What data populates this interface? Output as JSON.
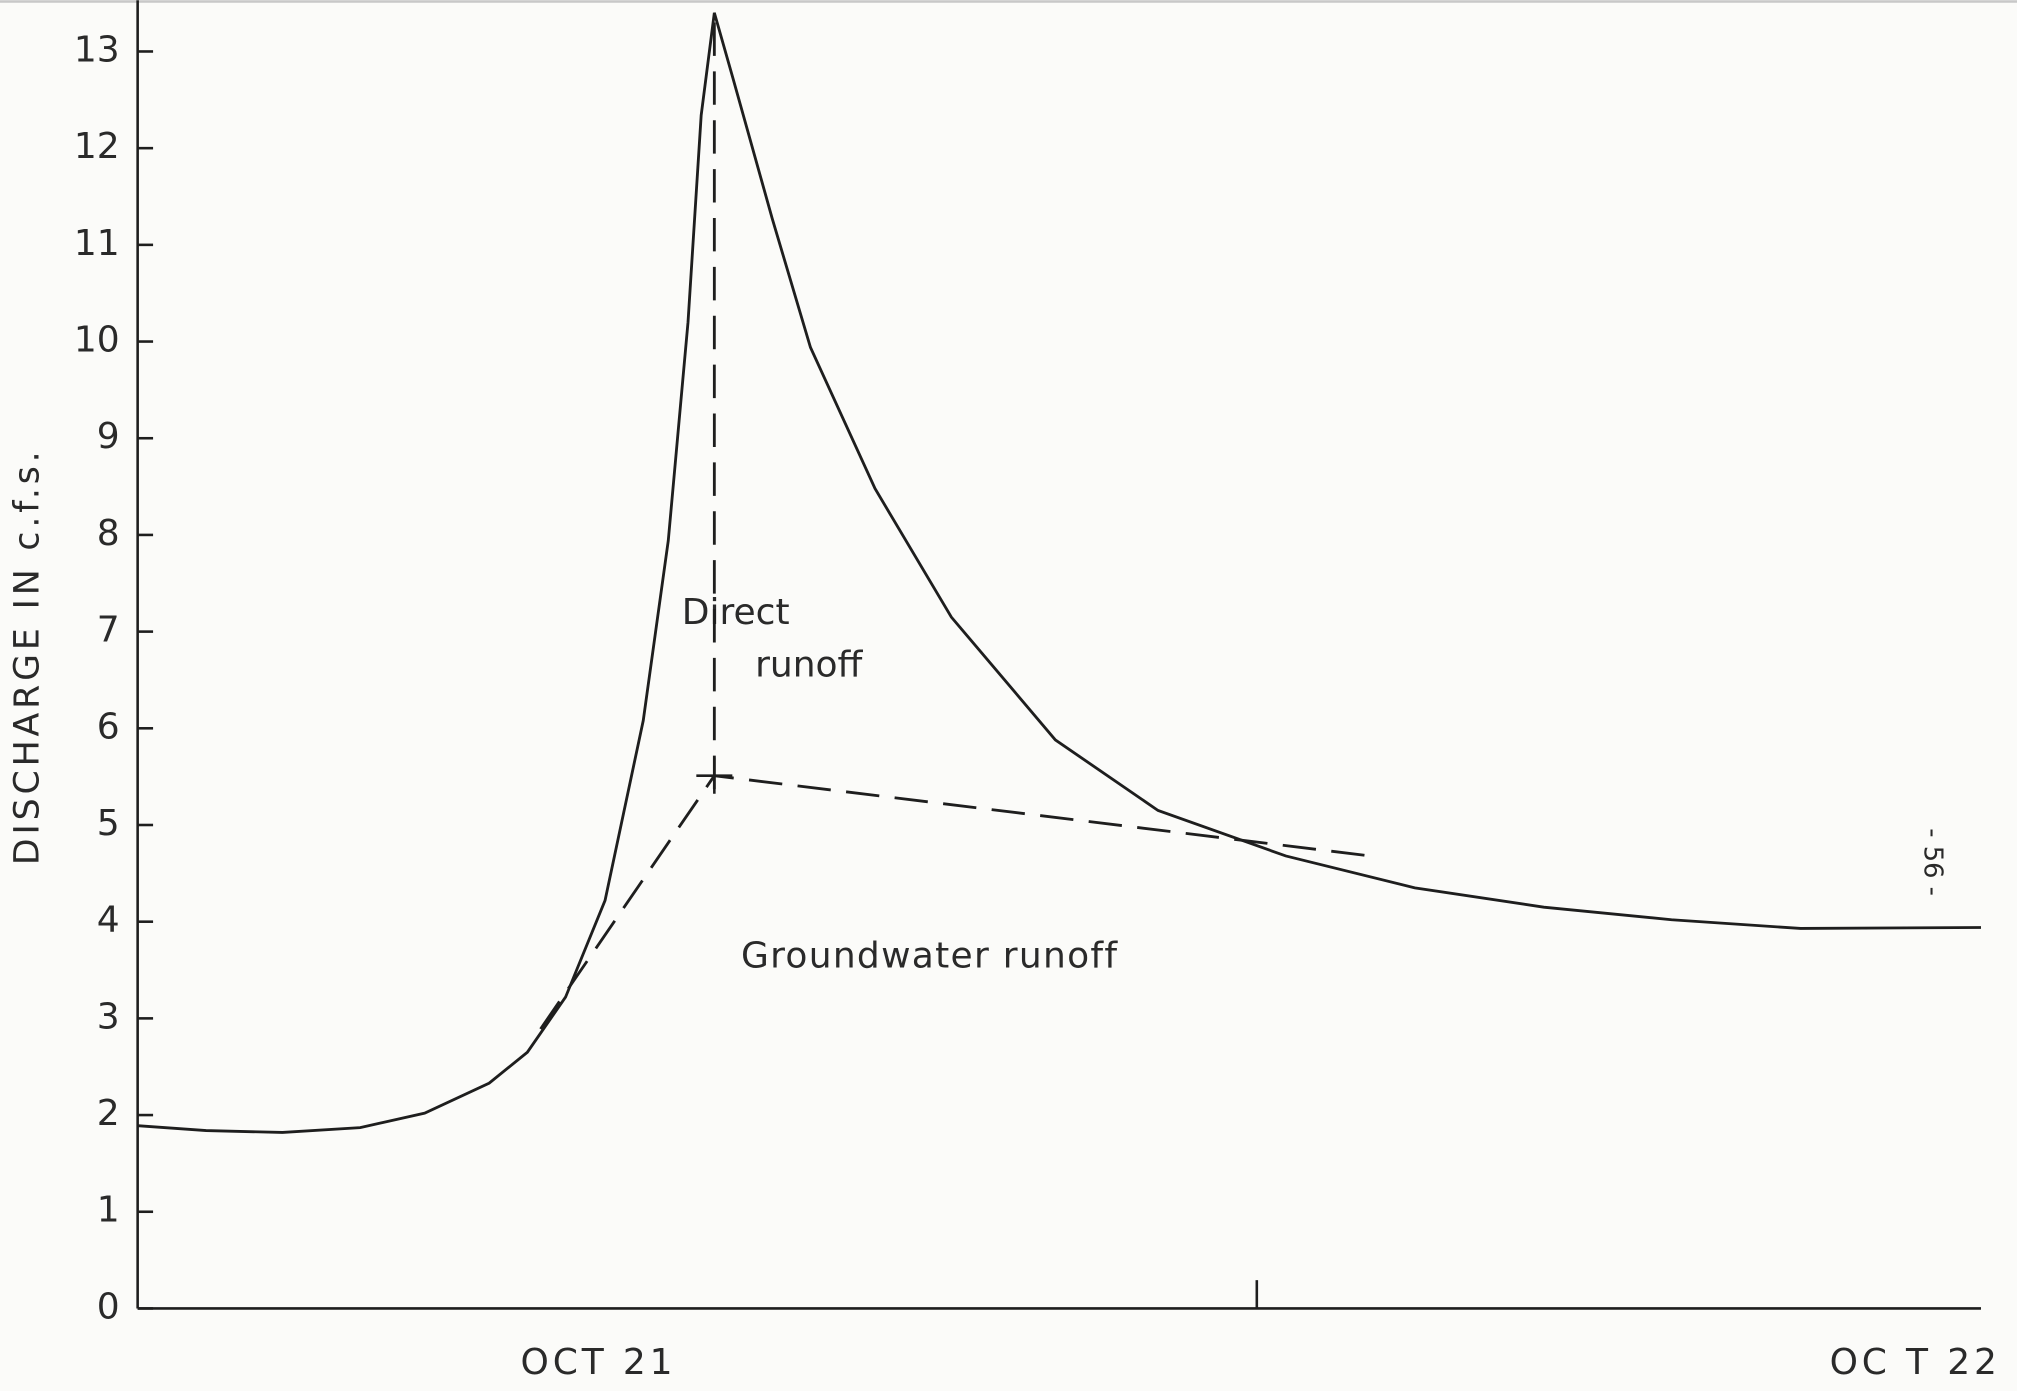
{
  "chart_data": {
    "type": "line",
    "ylabel": "DISCHARGE   IN   c.f.s.",
    "annotations": [
      "Direct",
      "runoff",
      "Groundwater runoff",
      "- 56 -"
    ],
    "x": [
      20.65,
      20.702,
      20.76,
      20.819,
      20.868,
      20.917,
      20.946,
      20.975,
      21.005,
      21.034,
      21.053,
      21.068,
      21.078,
      21.088,
      21.102,
      21.132,
      21.161,
      21.21,
      21.268,
      21.347,
      21.425,
      21.522,
      21.62,
      21.718,
      21.815,
      21.913,
      22.05
    ],
    "series": [
      {
        "color": "#1e1e1e",
        "values": [
          1.89,
          1.84,
          1.82,
          1.87,
          2.02,
          2.33,
          2.65,
          3.22,
          4.22,
          6.08,
          7.94,
          10.2,
          12.34,
          13.4,
          12.73,
          11.27,
          9.94,
          8.48,
          7.15,
          5.88,
          5.15,
          4.68,
          4.35,
          4.15,
          4.02,
          3.93,
          3.94
        ]
      },
      {
        "color": "#1e1e1e",
        "dash": true,
        "x": [
          20.956,
          21.088,
          21.586
        ],
        "values": [
          2.89,
          5.51,
          4.68
        ]
      },
      {
        "color": "#1e1e1e",
        "dash": true,
        "x": [
          21.088,
          21.088
        ],
        "values": [
          13.3,
          5.28
        ]
      }
    ],
    "xlim": [
      20.65,
      22.05
    ],
    "xticks": [
      {
        "value": 21,
        "label": "OCT  21"
      },
      {
        "value": 22,
        "label": "OC T   22"
      }
    ],
    "xticks_minor": [
      21.5
    ],
    "ylim": [
      0,
      13.53
    ],
    "yticks": [
      0,
      1,
      2,
      3,
      4,
      5,
      6,
      7,
      8,
      9,
      10,
      11,
      12,
      13
    ]
  }
}
